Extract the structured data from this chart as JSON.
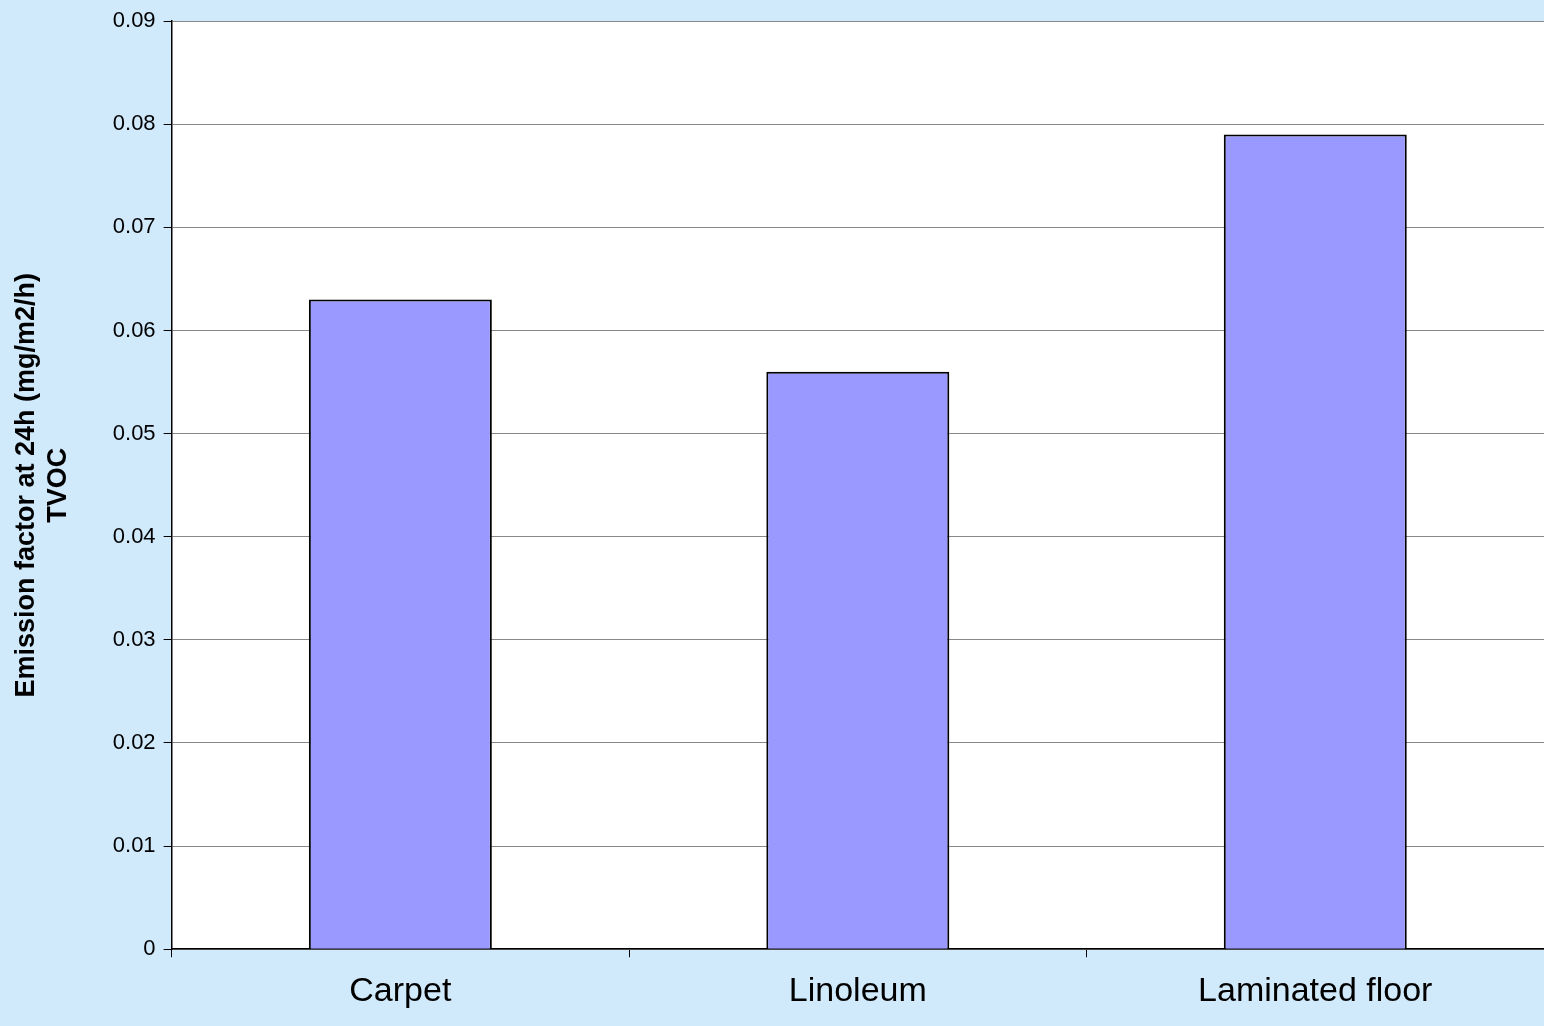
{
  "chart_data": {
    "type": "bar",
    "ylabel": "Emission factor at 24h (mg/m2/h)\nTVOC",
    "categories": [
      "Carpet",
      "Linoleum",
      "Laminated floor"
    ],
    "values": [
      0.063,
      0.056,
      0.079
    ],
    "color": "#9999ff",
    "ylim": [
      0,
      0.09
    ],
    "yticks": [
      0,
      0.01,
      0.02,
      0.03,
      0.04,
      0.05,
      0.06,
      0.07,
      0.08,
      0.09
    ],
    "grid": "y"
  }
}
